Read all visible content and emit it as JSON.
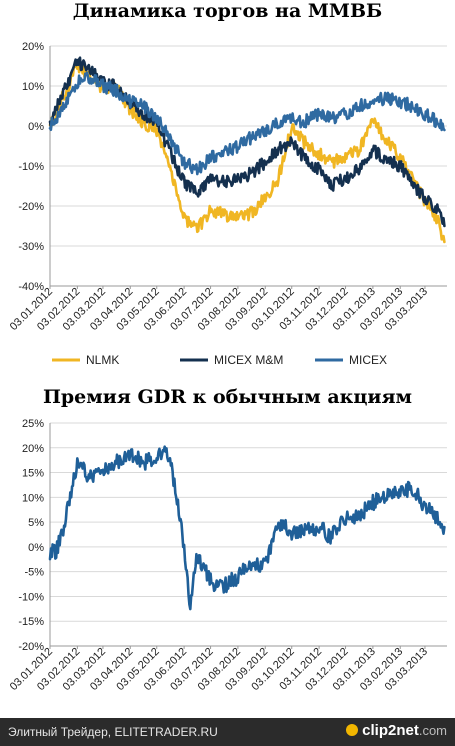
{
  "chart_data": [
    {
      "type": "line",
      "title": "Динамика торгов на ММВБ",
      "x_ticks": [
        "03.01.2012",
        "03.02.2012",
        "03.03.2012",
        "03.04.2012",
        "03.05.2012",
        "03.06.2012",
        "03.07.2012",
        "03.08.2012",
        "03.09.2012",
        "03.10.2012",
        "03.11.2012",
        "03.12.2012",
        "03.01.2013",
        "03.02.2013",
        "03.03.2013"
      ],
      "y_ticks": [
        "20%",
        "10%",
        "0%",
        "-10%",
        "-20%",
        "-30%",
        "-40%"
      ],
      "ylim": [
        -40,
        20
      ],
      "legend_position": "bottom",
      "grid": "horizontal",
      "series": [
        {
          "name": "NLMK",
          "color": "#f0b623",
          "x": [
            "03.01.2012",
            "17.01.2012",
            "03.02.2012",
            "17.02.2012",
            "03.03.2012",
            "17.03.2012",
            "03.04.2012",
            "17.04.2012",
            "03.05.2012",
            "17.05.2012",
            "03.06.2012",
            "17.06.2012",
            "03.07.2012",
            "17.07.2012",
            "03.08.2012",
            "17.08.2012",
            "03.09.2012",
            "17.09.2012",
            "03.10.2012",
            "17.10.2012",
            "03.11.2012",
            "17.11.2012",
            "03.12.2012",
            "17.12.2012",
            "03.01.2013",
            "17.01.2013",
            "03.02.2013",
            "17.02.2013",
            "03.03.2013",
            "17.03.2013",
            "25.03.2013"
          ],
          "values": [
            0,
            7,
            15,
            13,
            9,
            10,
            4,
            1,
            -1,
            -10,
            -23,
            -26,
            -21,
            -22,
            -23,
            -22,
            -18,
            -14,
            0,
            -4,
            -7,
            -9,
            -8,
            -6,
            1,
            -3,
            -8,
            -13,
            -19,
            -23,
            -29
          ]
        },
        {
          "name": "MICEX M&M",
          "color": "#14304f",
          "x": [
            "03.01.2012",
            "17.01.2012",
            "03.02.2012",
            "17.02.2012",
            "03.03.2012",
            "17.03.2012",
            "03.04.2012",
            "17.04.2012",
            "03.05.2012",
            "17.05.2012",
            "03.06.2012",
            "17.06.2012",
            "03.07.2012",
            "17.07.2012",
            "03.08.2012",
            "17.08.2012",
            "03.09.2012",
            "17.09.2012",
            "03.10.2012",
            "17.10.2012",
            "03.11.2012",
            "17.11.2012",
            "03.12.2012",
            "17.12.2012",
            "03.01.2013",
            "17.01.2013",
            "03.02.2013",
            "17.02.2013",
            "03.03.2013",
            "17.03.2013",
            "25.03.2013"
          ],
          "values": [
            0,
            8,
            16,
            14,
            11,
            10,
            6,
            3,
            1,
            -6,
            -14,
            -17,
            -13,
            -14,
            -13,
            -12,
            -9,
            -6,
            -4,
            -8,
            -11,
            -15,
            -13,
            -11,
            -6,
            -8,
            -10,
            -15,
            -18,
            -21,
            -25
          ]
        },
        {
          "name": "MICEX",
          "color": "#2f6aa1",
          "x": [
            "03.01.2012",
            "17.01.2012",
            "03.02.2012",
            "17.02.2012",
            "03.03.2012",
            "17.03.2012",
            "03.04.2012",
            "17.04.2012",
            "03.05.2012",
            "17.05.2012",
            "03.06.2012",
            "17.06.2012",
            "03.07.2012",
            "17.07.2012",
            "03.08.2012",
            "17.08.2012",
            "03.09.2012",
            "17.09.2012",
            "03.10.2012",
            "17.10.2012",
            "03.11.2012",
            "17.11.2012",
            "03.12.2012",
            "17.12.2012",
            "03.01.2013",
            "17.01.2013",
            "03.02.2013",
            "17.02.2013",
            "03.03.2013",
            "17.03.2013",
            "25.03.2013"
          ],
          "values": [
            0,
            4,
            11,
            12,
            10,
            9,
            6,
            5,
            2,
            -3,
            -9,
            -11,
            -8,
            -7,
            -5,
            -3,
            -1,
            1,
            2,
            1,
            3,
            2,
            3,
            5,
            6,
            7,
            6,
            5,
            3,
            1,
            -1
          ]
        }
      ]
    },
    {
      "type": "line",
      "title": "Премия GDR к обычным акциям",
      "x_ticks": [
        "03.01.2012",
        "03.02.2012",
        "03.03.2012",
        "03.04.2012",
        "03.05.2012",
        "03.06.2012",
        "03.07.2012",
        "03.08.2012",
        "03.09.2012",
        "03.10.2012",
        "03.11.2012",
        "03.12.2012",
        "03.01.2013",
        "03.02.2013",
        "03.03.2013"
      ],
      "y_ticks": [
        "25%",
        "20%",
        "15%",
        "10%",
        "5%",
        "0%",
        "-5%",
        "-10%",
        "-15%",
        "-20%"
      ],
      "ylim": [
        -20,
        25
      ],
      "grid": "horizontal",
      "series": [
        {
          "color": "#1f5f98",
          "x": [
            "03.01.2012",
            "10.01.2012",
            "17.01.2012",
            "25.01.2012",
            "03.02.2012",
            "17.02.2012",
            "03.03.2012",
            "17.03.2012",
            "03.04.2012",
            "17.04.2012",
            "03.05.2012",
            "17.05.2012",
            "25.05.2012",
            "01.06.2012",
            "05.06.2012",
            "10.06.2012",
            "17.06.2012",
            "03.07.2012",
            "17.07.2012",
            "03.08.2012",
            "17.08.2012",
            "03.09.2012",
            "17.09.2012",
            "03.10.2012",
            "17.10.2012",
            "03.11.2012",
            "17.11.2012",
            "03.12.2012",
            "17.12.2012",
            "03.01.2013",
            "17.01.2013",
            "03.02.2013",
            "17.02.2013",
            "03.03.2013",
            "17.03.2013",
            "25.03.2013"
          ],
          "values": [
            -1,
            -1,
            3,
            10,
            17,
            14,
            16,
            17,
            19,
            17,
            18,
            19,
            10,
            3,
            -3,
            -13,
            -1,
            -7,
            -8,
            -6,
            -3,
            -4,
            5,
            3,
            3,
            4,
            2,
            6,
            6,
            9,
            10,
            11,
            12,
            8,
            6,
            4
          ]
        }
      ]
    }
  ],
  "footer": {
    "text": "Элитный Трейдер, ELITETRADER.RU",
    "logo_main": "clip2net",
    "logo_suffix": ".com"
  }
}
